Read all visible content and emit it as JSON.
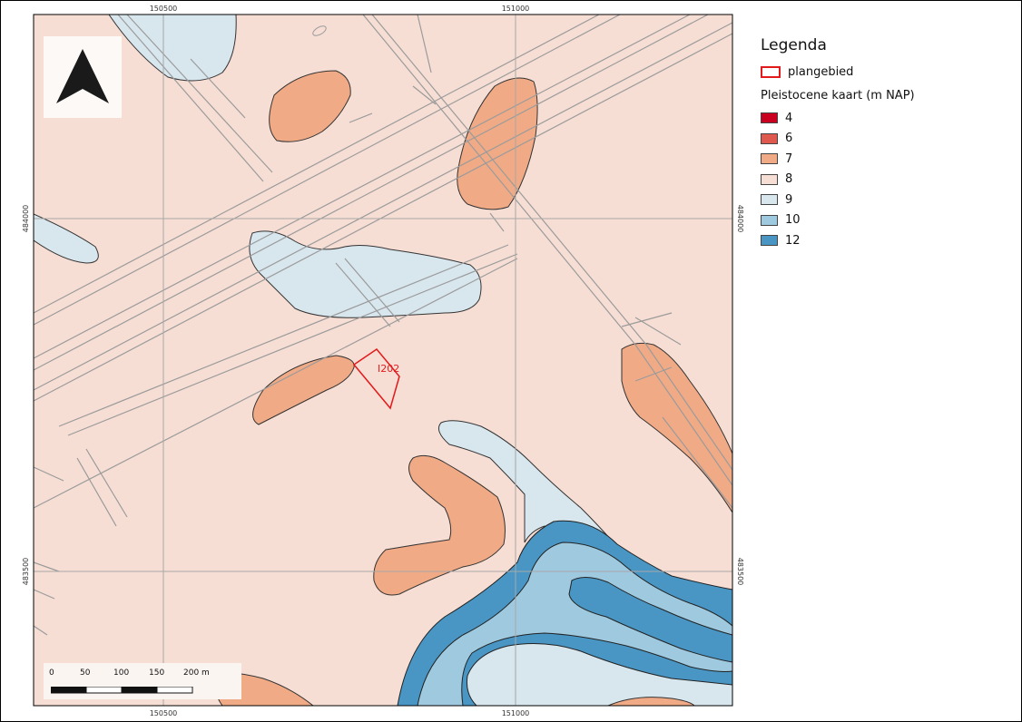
{
  "legend": {
    "title": "Legenda",
    "plangebied_label": "plangebied",
    "section_title": "Pleistocene kaart (m NAP)",
    "classes": [
      {
        "label": "4",
        "color": "#ca0020"
      },
      {
        "label": "6",
        "color": "#e0594f"
      },
      {
        "label": "7",
        "color": "#f0aa86"
      },
      {
        "label": "8",
        "color": "#f7ded4"
      },
      {
        "label": "9",
        "color": "#d8e6ee"
      },
      {
        "label": "10",
        "color": "#9ec9df"
      },
      {
        "label": "12",
        "color": "#4996c4"
      }
    ]
  },
  "grid": {
    "x_top": [
      "150500",
      "151000"
    ],
    "x_bottom": [
      "150500",
      "151000"
    ],
    "y_left": [
      "484000",
      "483500"
    ],
    "y_right": [
      "484000",
      "483500"
    ]
  },
  "scalebar": {
    "labels": [
      "0",
      "50",
      "100",
      "150",
      "200 m"
    ]
  },
  "plangebied": {
    "label": "I202",
    "color": "#e31a1c"
  },
  "north_arrow": {
    "icon": "north-arrow-icon"
  },
  "colors": {
    "background": "#f7ded4",
    "roads": "#9b9b9b",
    "grid": "#a8a8a8"
  }
}
